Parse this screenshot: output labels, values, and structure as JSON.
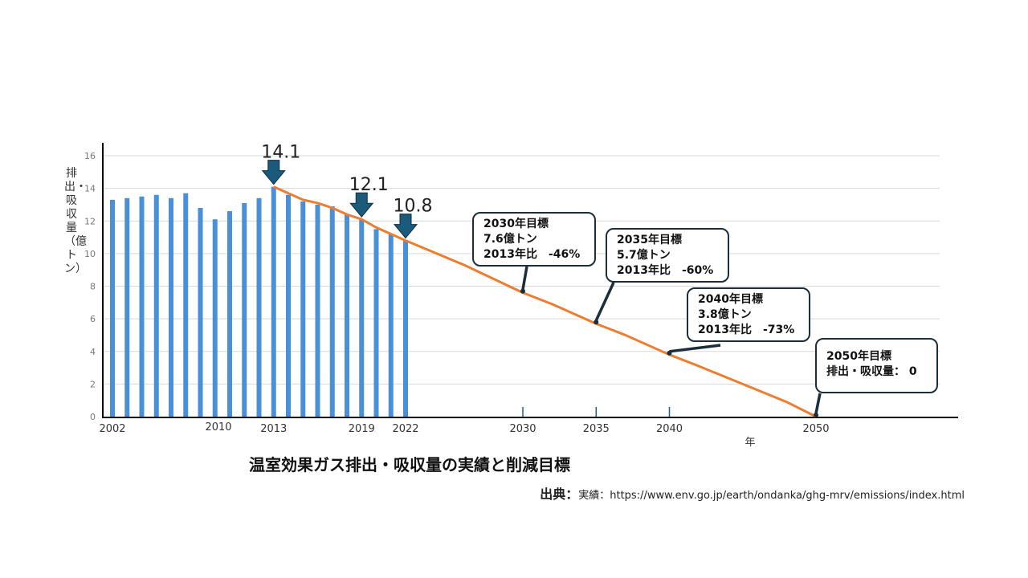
{
  "chart_data": {
    "type": "bar",
    "title": "温室効果ガス排出・吸収量の実績と削減目標",
    "xlabel": "年",
    "ylabel": "排出・吸収量（億トン）",
    "ylim": [
      0,
      16
    ],
    "yticks": [
      0,
      2,
      4,
      6,
      8,
      10,
      12,
      14,
      16
    ],
    "xtick_labels": [
      "2002",
      "2010",
      "2013",
      "2019",
      "2022",
      "2030",
      "2035",
      "2040",
      "2050"
    ],
    "grid": true,
    "bars": {
      "name": "実績",
      "x": [
        2002,
        2003,
        2004,
        2005,
        2006,
        2007,
        2008,
        2009,
        2010,
        2011,
        2012,
        2013,
        2014,
        2015,
        2016,
        2017,
        2018,
        2019,
        2020,
        2021,
        2022
      ],
      "values": [
        13.3,
        13.4,
        13.5,
        13.6,
        13.4,
        13.7,
        12.8,
        12.1,
        12.6,
        13.1,
        13.4,
        14.1,
        13.6,
        13.2,
        13.0,
        12.9,
        12.4,
        12.1,
        11.5,
        11.2,
        10.8
      ],
      "color": "#4a90d9"
    },
    "line": {
      "name": "削減目標",
      "x": [
        2013,
        2014,
        2015,
        2016,
        2017,
        2018,
        2019,
        2020,
        2021,
        2022,
        2026,
        2030,
        2032,
        2035,
        2037,
        2040,
        2042,
        2045,
        2048,
        2050
      ],
      "values": [
        14.1,
        13.7,
        13.3,
        13.1,
        12.8,
        12.4,
        12.1,
        11.6,
        11.2,
        10.8,
        9.3,
        7.6,
        6.9,
        5.7,
        5.0,
        3.8,
        3.1,
        2.0,
        0.9,
        0.0
      ],
      "color": "#ed7d31"
    },
    "highlights": [
      {
        "year": 2013,
        "label": "14.1"
      },
      {
        "year": 2019,
        "label": "12.1"
      },
      {
        "year": 2022,
        "label": "10.8"
      }
    ],
    "annotations": [
      {
        "year": 2030,
        "value": 7.6,
        "lines": [
          "2030年目標",
          "7.6億トン",
          "2013年比　-46%"
        ]
      },
      {
        "year": 2035,
        "value": 5.7,
        "lines": [
          "2035年目標",
          "5.7億トン",
          "2013年比　-60%"
        ]
      },
      {
        "year": 2040,
        "value": 3.8,
        "lines": [
          "2040年目標",
          "3.8億トン",
          "2013年比　-73%"
        ]
      },
      {
        "year": 2050,
        "value": 0,
        "lines": [
          "2050年目標",
          "排出・吸収量： 0"
        ]
      }
    ]
  },
  "source": {
    "label": "出典：",
    "text": "実績：https://www.env.go.jp/earth/ondanka/ghg-mrv/emissions/index.html"
  }
}
